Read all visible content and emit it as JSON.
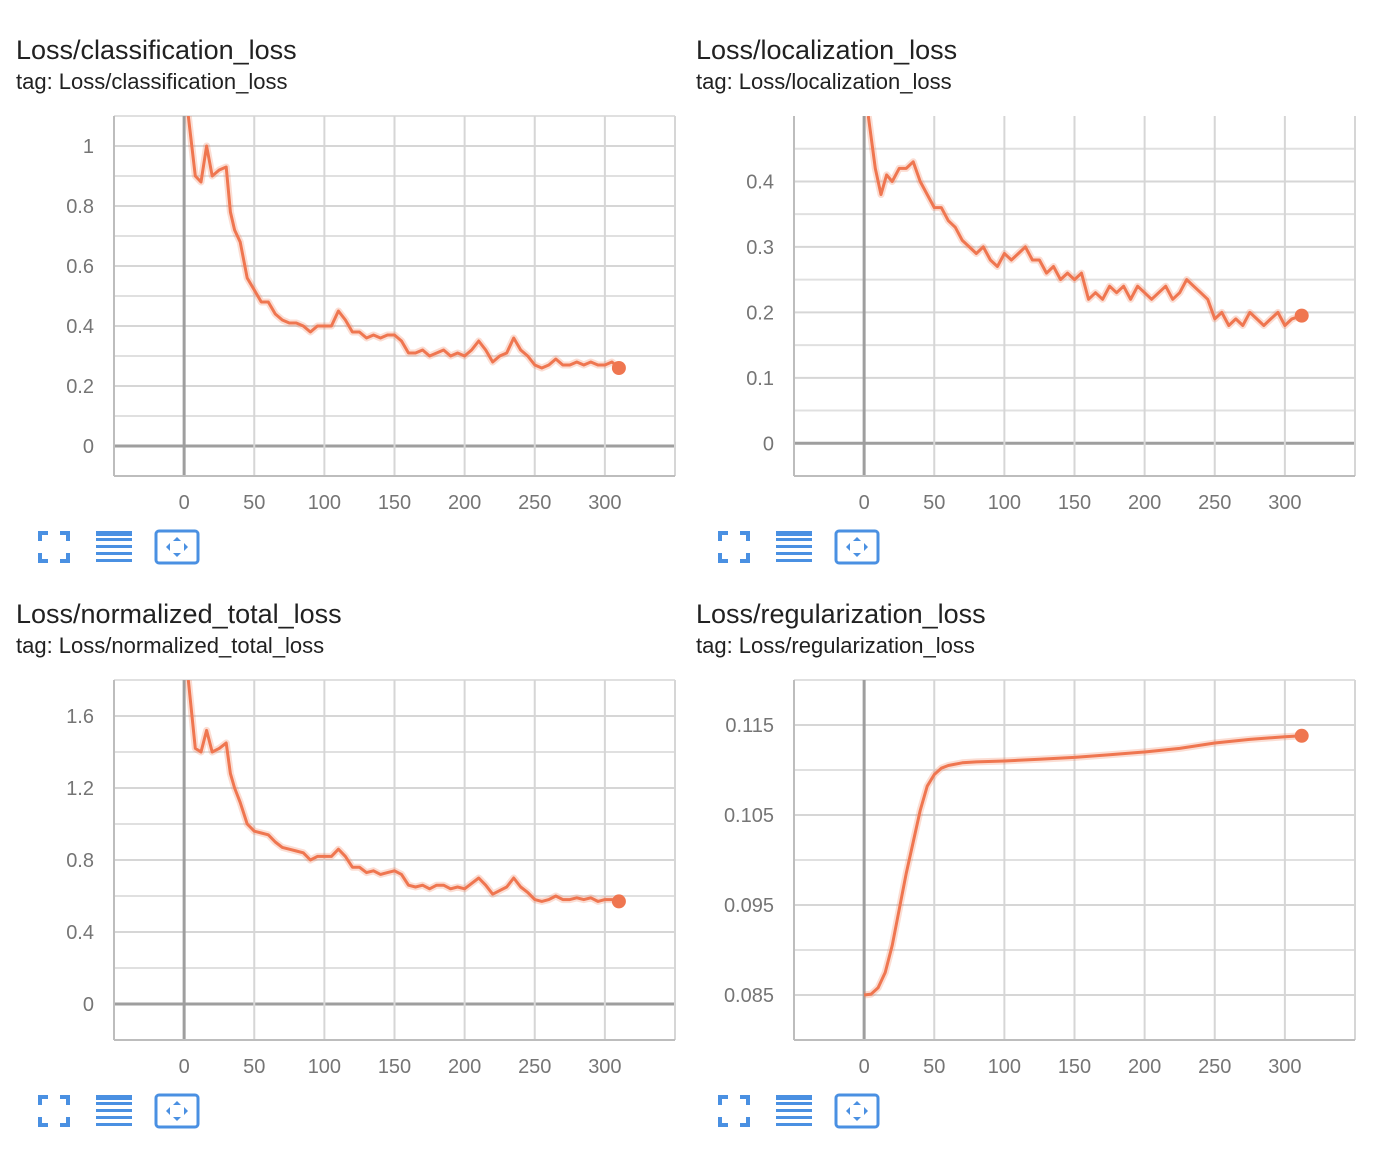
{
  "accent_color": "#ef7650",
  "button_color": "#4a90e2",
  "cards": [
    {
      "title": "Loss/classification_loss",
      "tag": "tag: Loss/classification_loss",
      "buttons": [
        "fullscreen-icon",
        "log-scale-icon",
        "fit-domain-icon"
      ]
    },
    {
      "title": "Loss/localization_loss",
      "tag": "tag: Loss/localization_loss",
      "buttons": [
        "fullscreen-icon",
        "log-scale-icon",
        "fit-domain-icon"
      ]
    },
    {
      "title": "Loss/normalized_total_loss",
      "tag": "tag: Loss/normalized_total_loss",
      "buttons": [
        "fullscreen-icon",
        "log-scale-icon",
        "fit-domain-icon"
      ]
    },
    {
      "title": "Loss/regularization_loss",
      "tag": "tag: Loss/regularization_loss",
      "buttons": [
        "fullscreen-icon",
        "log-scale-icon",
        "fit-domain-icon"
      ]
    }
  ],
  "chart_data": [
    {
      "type": "line",
      "title": "Loss/classification_loss",
      "xlim": [
        -50,
        350
      ],
      "ylim": [
        -0.1,
        1.1
      ],
      "x_ticks": [
        0,
        50,
        100,
        150,
        200,
        250,
        300
      ],
      "y_ticks": [
        0,
        0.2,
        0.4,
        0.6,
        0.8,
        1
      ],
      "y_tick_labels": [
        "0",
        "0.2",
        "0.4",
        "0.6",
        "0.8",
        "1"
      ],
      "grid": true,
      "series": [
        {
          "x": [
            3,
            8,
            12,
            16,
            20,
            25,
            30,
            33,
            36,
            40,
            45,
            50,
            55,
            60,
            65,
            70,
            75,
            80,
            85,
            90,
            95,
            100,
            105,
            110,
            115,
            120,
            125,
            130,
            135,
            140,
            145,
            150,
            155,
            160,
            165,
            170,
            175,
            180,
            185,
            190,
            195,
            200,
            205,
            210,
            215,
            220,
            225,
            230,
            235,
            240,
            245,
            250,
            255,
            260,
            265,
            270,
            275,
            280,
            285,
            290,
            295,
            300,
            305,
            310
          ],
          "values": [
            1.1,
            0.9,
            0.88,
            1.0,
            0.9,
            0.92,
            0.93,
            0.78,
            0.72,
            0.68,
            0.56,
            0.52,
            0.48,
            0.48,
            0.44,
            0.42,
            0.41,
            0.41,
            0.4,
            0.38,
            0.4,
            0.4,
            0.4,
            0.45,
            0.42,
            0.38,
            0.38,
            0.36,
            0.37,
            0.36,
            0.37,
            0.37,
            0.35,
            0.31,
            0.31,
            0.32,
            0.3,
            0.31,
            0.32,
            0.3,
            0.31,
            0.3,
            0.32,
            0.35,
            0.32,
            0.28,
            0.3,
            0.31,
            0.36,
            0.32,
            0.3,
            0.27,
            0.26,
            0.27,
            0.29,
            0.27,
            0.27,
            0.28,
            0.27,
            0.28,
            0.27,
            0.27,
            0.28,
            0.26
          ]
        }
      ]
    },
    {
      "type": "line",
      "title": "Loss/localization_loss",
      "xlim": [
        -50,
        350
      ],
      "ylim": [
        -0.05,
        0.5
      ],
      "x_ticks": [
        0,
        50,
        100,
        150,
        200,
        250,
        300
      ],
      "y_ticks": [
        0,
        0.1,
        0.2,
        0.3,
        0.4
      ],
      "y_tick_labels": [
        "0",
        "0.1",
        "0.2",
        "0.3",
        "0.4"
      ],
      "grid": true,
      "series": [
        {
          "x": [
            3,
            8,
            12,
            16,
            20,
            25,
            30,
            35,
            40,
            45,
            50,
            55,
            60,
            65,
            70,
            75,
            80,
            85,
            90,
            95,
            100,
            105,
            110,
            115,
            120,
            125,
            130,
            135,
            140,
            145,
            150,
            155,
            160,
            165,
            170,
            175,
            180,
            185,
            190,
            195,
            200,
            205,
            210,
            215,
            220,
            225,
            230,
            235,
            240,
            245,
            250,
            255,
            260,
            265,
            270,
            275,
            280,
            285,
            290,
            295,
            300,
            305,
            312
          ],
          "values": [
            0.5,
            0.42,
            0.38,
            0.41,
            0.4,
            0.42,
            0.42,
            0.43,
            0.4,
            0.38,
            0.36,
            0.36,
            0.34,
            0.33,
            0.31,
            0.3,
            0.29,
            0.3,
            0.28,
            0.27,
            0.29,
            0.28,
            0.29,
            0.3,
            0.28,
            0.28,
            0.26,
            0.27,
            0.25,
            0.26,
            0.25,
            0.26,
            0.22,
            0.23,
            0.22,
            0.24,
            0.23,
            0.24,
            0.22,
            0.24,
            0.23,
            0.22,
            0.23,
            0.24,
            0.22,
            0.23,
            0.25,
            0.24,
            0.23,
            0.22,
            0.19,
            0.2,
            0.18,
            0.19,
            0.18,
            0.2,
            0.19,
            0.18,
            0.19,
            0.2,
            0.18,
            0.19,
            0.195
          ]
        }
      ]
    },
    {
      "type": "line",
      "title": "Loss/normalized_total_loss",
      "xlim": [
        -50,
        350
      ],
      "ylim": [
        -0.2,
        1.8
      ],
      "x_ticks": [
        0,
        50,
        100,
        150,
        200,
        250,
        300
      ],
      "y_ticks": [
        0,
        0.4,
        0.8,
        1.2,
        1.6
      ],
      "y_tick_labels": [
        "0",
        "0.4",
        "0.8",
        "1.2",
        "1.6"
      ],
      "grid": true,
      "series": [
        {
          "x": [
            3,
            8,
            12,
            16,
            20,
            25,
            30,
            33,
            36,
            40,
            45,
            50,
            55,
            60,
            65,
            70,
            75,
            80,
            85,
            90,
            95,
            100,
            105,
            110,
            115,
            120,
            125,
            130,
            135,
            140,
            145,
            150,
            155,
            160,
            165,
            170,
            175,
            180,
            185,
            190,
            195,
            200,
            205,
            210,
            215,
            220,
            225,
            230,
            235,
            240,
            245,
            250,
            255,
            260,
            265,
            270,
            275,
            280,
            285,
            290,
            295,
            300,
            305,
            310
          ],
          "values": [
            1.8,
            1.42,
            1.4,
            1.52,
            1.4,
            1.42,
            1.45,
            1.28,
            1.2,
            1.12,
            1.0,
            0.96,
            0.95,
            0.94,
            0.9,
            0.87,
            0.86,
            0.85,
            0.84,
            0.8,
            0.82,
            0.82,
            0.82,
            0.86,
            0.82,
            0.76,
            0.76,
            0.73,
            0.74,
            0.72,
            0.73,
            0.74,
            0.72,
            0.66,
            0.65,
            0.66,
            0.64,
            0.66,
            0.66,
            0.64,
            0.65,
            0.64,
            0.67,
            0.7,
            0.66,
            0.61,
            0.63,
            0.65,
            0.7,
            0.65,
            0.62,
            0.58,
            0.57,
            0.58,
            0.6,
            0.58,
            0.58,
            0.59,
            0.58,
            0.59,
            0.57,
            0.58,
            0.58,
            0.57
          ]
        }
      ]
    },
    {
      "type": "line",
      "title": "Loss/regularization_loss",
      "xlim": [
        -50,
        350
      ],
      "ylim": [
        0.08,
        0.12
      ],
      "x_ticks": [
        0,
        50,
        100,
        150,
        200,
        250,
        300
      ],
      "y_ticks": [
        0.085,
        0.095,
        0.105,
        0.115
      ],
      "y_tick_labels": [
        "0.085",
        "0.095",
        "0.105",
        "0.115"
      ],
      "grid": true,
      "series": [
        {
          "x": [
            0,
            5,
            10,
            15,
            20,
            25,
            30,
            35,
            40,
            45,
            50,
            55,
            60,
            70,
            80,
            100,
            125,
            150,
            175,
            200,
            225,
            250,
            275,
            300,
            312
          ],
          "values": [
            0.085,
            0.0851,
            0.0858,
            0.0875,
            0.0905,
            0.0945,
            0.0985,
            0.102,
            0.1055,
            0.1082,
            0.1095,
            0.1102,
            0.1105,
            0.1108,
            0.1109,
            0.111,
            0.1112,
            0.1114,
            0.1117,
            0.112,
            0.1124,
            0.113,
            0.1134,
            0.1137,
            0.1138
          ]
        }
      ]
    }
  ]
}
